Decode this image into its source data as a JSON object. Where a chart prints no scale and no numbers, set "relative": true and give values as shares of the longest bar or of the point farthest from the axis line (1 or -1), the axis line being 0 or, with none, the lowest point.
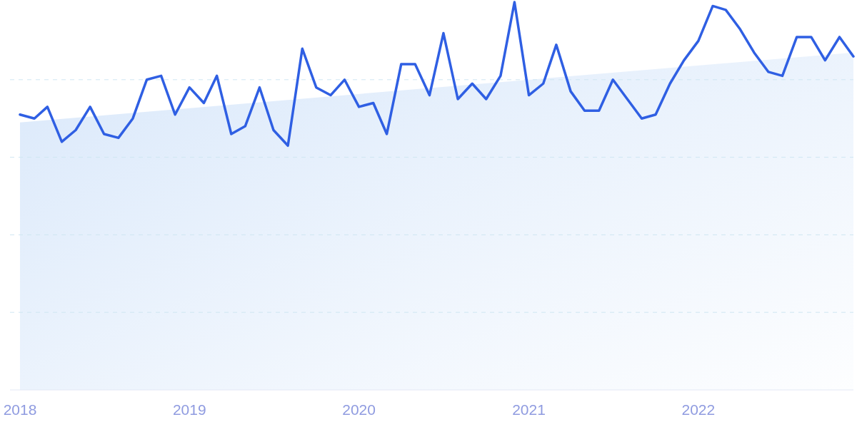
{
  "chart_data": {
    "type": "line",
    "relative": true,
    "grid": "y",
    "x": [
      "2018-01",
      "2018-02",
      "2018-03",
      "2018-04",
      "2018-05",
      "2018-06",
      "2018-07",
      "2018-08",
      "2018-09",
      "2018-10",
      "2018-11",
      "2018-12",
      "2019-01",
      "2019-02",
      "2019-03",
      "2019-04",
      "2019-05",
      "2019-06",
      "2019-07",
      "2019-08",
      "2019-09",
      "2019-10",
      "2019-11",
      "2019-12",
      "2020-01",
      "2020-02",
      "2020-03",
      "2020-04",
      "2020-05",
      "2020-06",
      "2020-07",
      "2020-08",
      "2020-09",
      "2020-10",
      "2020-11",
      "2020-12",
      "2021-01",
      "2021-02",
      "2021-03",
      "2021-04",
      "2021-05",
      "2021-06",
      "2021-07",
      "2021-08",
      "2021-09",
      "2021-10",
      "2021-11",
      "2021-12",
      "2022-01",
      "2022-02",
      "2022-03",
      "2022-04",
      "2022-05",
      "2022-06",
      "2022-07",
      "2022-08",
      "2022-09",
      "2022-10",
      "2022-11",
      "2022-12"
    ],
    "xlim": [
      "2018-01",
      "2022-12"
    ],
    "xticks": [
      "2018",
      "2019",
      "2020",
      "2021",
      "2022"
    ],
    "series": [
      {
        "type": "area",
        "color": "#d6e6fa",
        "x": [
          "2018-01",
          "2022-12"
        ],
        "values": [
          0.69,
          0.87
        ]
      },
      {
        "color": "#2f5fe3",
        "values": [
          0.71,
          0.7,
          0.73,
          0.64,
          0.67,
          0.73,
          0.66,
          0.65,
          0.7,
          0.8,
          0.81,
          0.71,
          0.78,
          0.74,
          0.81,
          0.66,
          0.68,
          0.78,
          0.67,
          0.63,
          0.88,
          0.78,
          0.76,
          0.8,
          0.73,
          0.74,
          0.66,
          0.84,
          0.84,
          0.76,
          0.92,
          0.75,
          0.79,
          0.75,
          0.81,
          1,
          0.76,
          0.79,
          0.89,
          0.77,
          0.72,
          0.72,
          0.8,
          0.75,
          0.7,
          0.71,
          0.79,
          0.85,
          0.9,
          0.99,
          0.98,
          0.93,
          0.87,
          0.82,
          0.81,
          0.91,
          0.91,
          0.85,
          0.91,
          0.86
        ]
      }
    ]
  }
}
